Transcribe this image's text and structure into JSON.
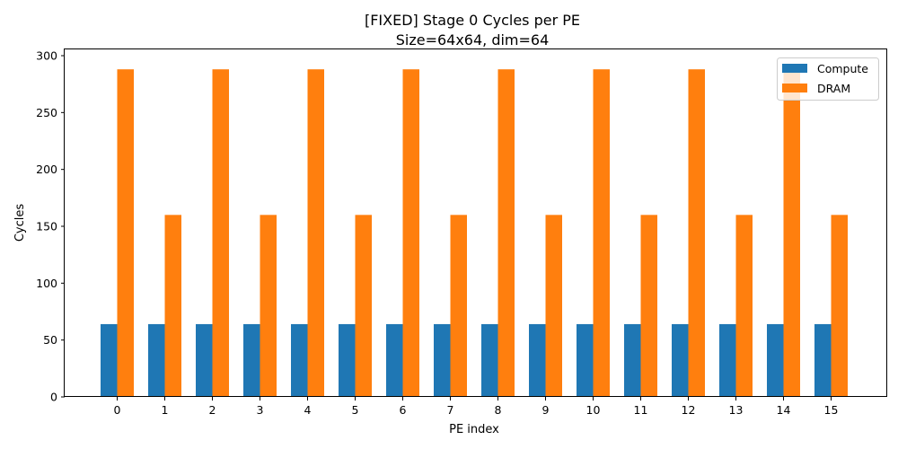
{
  "chart_data": {
    "type": "bar",
    "title_line1": "[FIXED] Stage 0 Cycles per PE",
    "title_line2": "Size=64x64, dim=64",
    "xlabel": "PE index",
    "ylabel": "Cycles",
    "categories": [
      "0",
      "1",
      "2",
      "3",
      "4",
      "5",
      "6",
      "7",
      "8",
      "9",
      "10",
      "11",
      "12",
      "13",
      "14",
      "15"
    ],
    "series": [
      {
        "name": "Compute",
        "color": "#1f77b4",
        "values": [
          64,
          64,
          64,
          64,
          64,
          64,
          64,
          64,
          64,
          64,
          64,
          64,
          64,
          64,
          64,
          64
        ]
      },
      {
        "name": "DRAM",
        "color": "#ff7f0e",
        "values": [
          288,
          160,
          288,
          160,
          288,
          160,
          288,
          160,
          288,
          160,
          288,
          160,
          288,
          160,
          288,
          160
        ]
      }
    ],
    "ylim": [
      0,
      300
    ],
    "yticks": [
      0,
      50,
      100,
      150,
      200,
      250,
      300
    ],
    "legend_position": "upper right",
    "grid": false
  }
}
